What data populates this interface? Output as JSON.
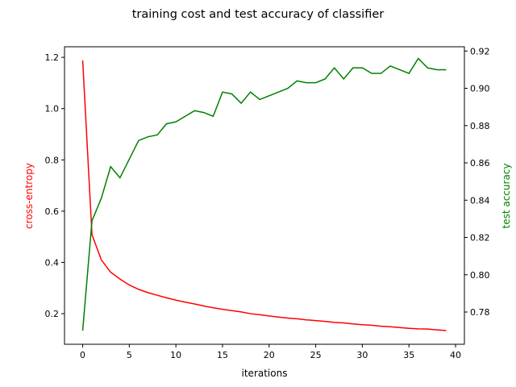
{
  "chart_data": {
    "type": "line",
    "title": "training cost and test accuracy of classifier",
    "xlabel": "iterations",
    "ylabel_left": "cross-entropy",
    "ylabel_right": "test accuracy",
    "xlim": [
      -1.95,
      40.95
    ],
    "ylim_left": [
      0.0807,
      1.2413
    ],
    "ylim_right": [
      0.7627,
      0.9223
    ],
    "x_ticks": [
      0,
      5,
      10,
      15,
      20,
      25,
      30,
      35,
      40
    ],
    "y_left_ticks": [
      0.2,
      0.4,
      0.6,
      0.8,
      1.0,
      1.2
    ],
    "y_right_ticks": [
      0.78,
      0.8,
      0.82,
      0.84,
      0.86,
      0.88,
      0.9,
      0.92
    ],
    "grid": false,
    "colors": {
      "cost": "#ff0000",
      "accuracy": "#008000",
      "left_label": "#ff0000",
      "right_label": "#008000"
    },
    "x": [
      0,
      1,
      2,
      3,
      4,
      5,
      6,
      7,
      8,
      9,
      10,
      11,
      12,
      13,
      14,
      15,
      16,
      17,
      18,
      19,
      20,
      21,
      22,
      23,
      24,
      25,
      26,
      27,
      28,
      29,
      30,
      31,
      32,
      33,
      34,
      35,
      36,
      37,
      38,
      39
    ],
    "series": [
      {
        "axis": "left",
        "values": [
          1.188,
          0.508,
          0.41,
          0.362,
          0.335,
          0.312,
          0.295,
          0.282,
          0.272,
          0.262,
          0.253,
          0.245,
          0.238,
          0.23,
          0.223,
          0.217,
          0.212,
          0.207,
          0.2,
          0.196,
          0.191,
          0.187,
          0.183,
          0.18,
          0.176,
          0.173,
          0.17,
          0.166,
          0.164,
          0.16,
          0.157,
          0.155,
          0.151,
          0.149,
          0.146,
          0.143,
          0.141,
          0.14,
          0.137,
          0.134
        ]
      },
      {
        "axis": "right",
        "values": [
          0.77,
          0.829,
          0.841,
          0.858,
          0.852,
          0.862,
          0.872,
          0.874,
          0.875,
          0.881,
          0.882,
          0.885,
          0.888,
          0.887,
          0.885,
          0.898,
          0.897,
          0.892,
          0.898,
          0.894,
          0.896,
          0.898,
          0.9,
          0.904,
          0.903,
          0.903,
          0.905,
          0.911,
          0.905,
          0.911,
          0.911,
          0.908,
          0.908,
          0.912,
          0.91,
          0.908,
          0.916,
          0.911,
          0.91,
          0.91
        ]
      }
    ]
  }
}
